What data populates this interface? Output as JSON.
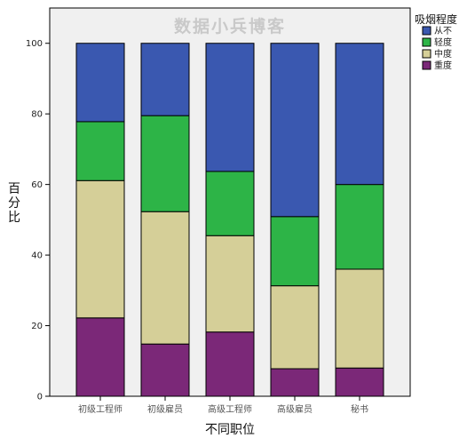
{
  "watermark": "数据小兵博客",
  "chart_data": {
    "type": "bar",
    "stacked": true,
    "categories": [
      "初级工程师",
      "初级雇员",
      "高级工程师",
      "高级雇员",
      "秘书"
    ],
    "series": [
      {
        "name": "重度",
        "color": "#7b2878",
        "values": [
          22.2,
          14.8,
          18.2,
          7.8,
          8.0
        ]
      },
      {
        "name": "中度",
        "color": "#d5cf98",
        "values": [
          38.9,
          37.5,
          27.3,
          23.5,
          28.0
        ]
      },
      {
        "name": "轻度",
        "color": "#2db447",
        "values": [
          16.7,
          27.2,
          18.2,
          19.6,
          24.0
        ]
      },
      {
        "name": "从不",
        "color": "#3a58b0",
        "values": [
          22.2,
          20.5,
          36.3,
          49.1,
          40.0
        ]
      }
    ],
    "xlabel": "不同职位",
    "ylabel": "百分比",
    "ylim": [
      0,
      110
    ],
    "yticks": [
      0,
      20,
      40,
      60,
      80,
      100
    ],
    "legend_title": "吸烟程度",
    "legend_position": "right",
    "legend_order": [
      "从不",
      "轻度",
      "中度",
      "重度"
    ],
    "grid": false
  }
}
